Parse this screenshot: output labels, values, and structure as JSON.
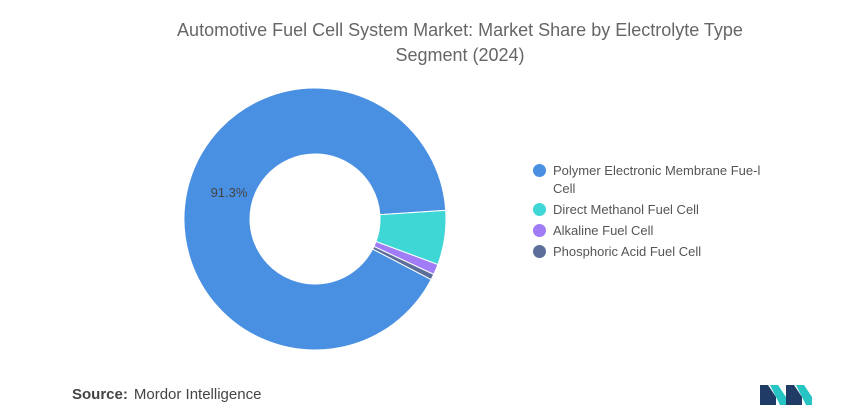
{
  "chart_data": {
    "type": "pie",
    "title": "Automotive Fuel Cell System Market: Market Share by Electrolyte Type Segment (2024)",
    "donut": true,
    "legend_position": "right",
    "start_segment": "Polymer Electronic Membrane Fuel Cell",
    "segments": [
      {
        "name": "Polymer Electronic Membrane Fuel Cell",
        "legend_label": "Polymer Electronic Membrane Fue-l Cell",
        "value": 91.3,
        "color": "#4a90e2"
      },
      {
        "name": "Direct Methanol Fuel Cell",
        "legend_label": "Direct Methanol Fuel Cell",
        "value": 6.7,
        "color": "#3fd6d6"
      },
      {
        "name": "Alkaline Fuel Cell",
        "legend_label": "Alkaline Fuel Cell",
        "value": 1.3,
        "color": "#a07cf7"
      },
      {
        "name": "Phosphoric Acid Fuel Cell",
        "legend_label": "Phosphoric Acid Fuel Cell",
        "value": 0.7,
        "color": "#5b6f9a"
      }
    ],
    "data_labels": [
      {
        "segment": "Polymer Electronic Membrane Fuel Cell",
        "text": "91.3%"
      }
    ]
  },
  "source": {
    "label": "Source:",
    "text": "Mordor Intelligence"
  },
  "logo": {
    "icon": "mordor-intelligence-logo-icon",
    "colors": [
      "#1f3b66",
      "#27c4c4"
    ]
  }
}
